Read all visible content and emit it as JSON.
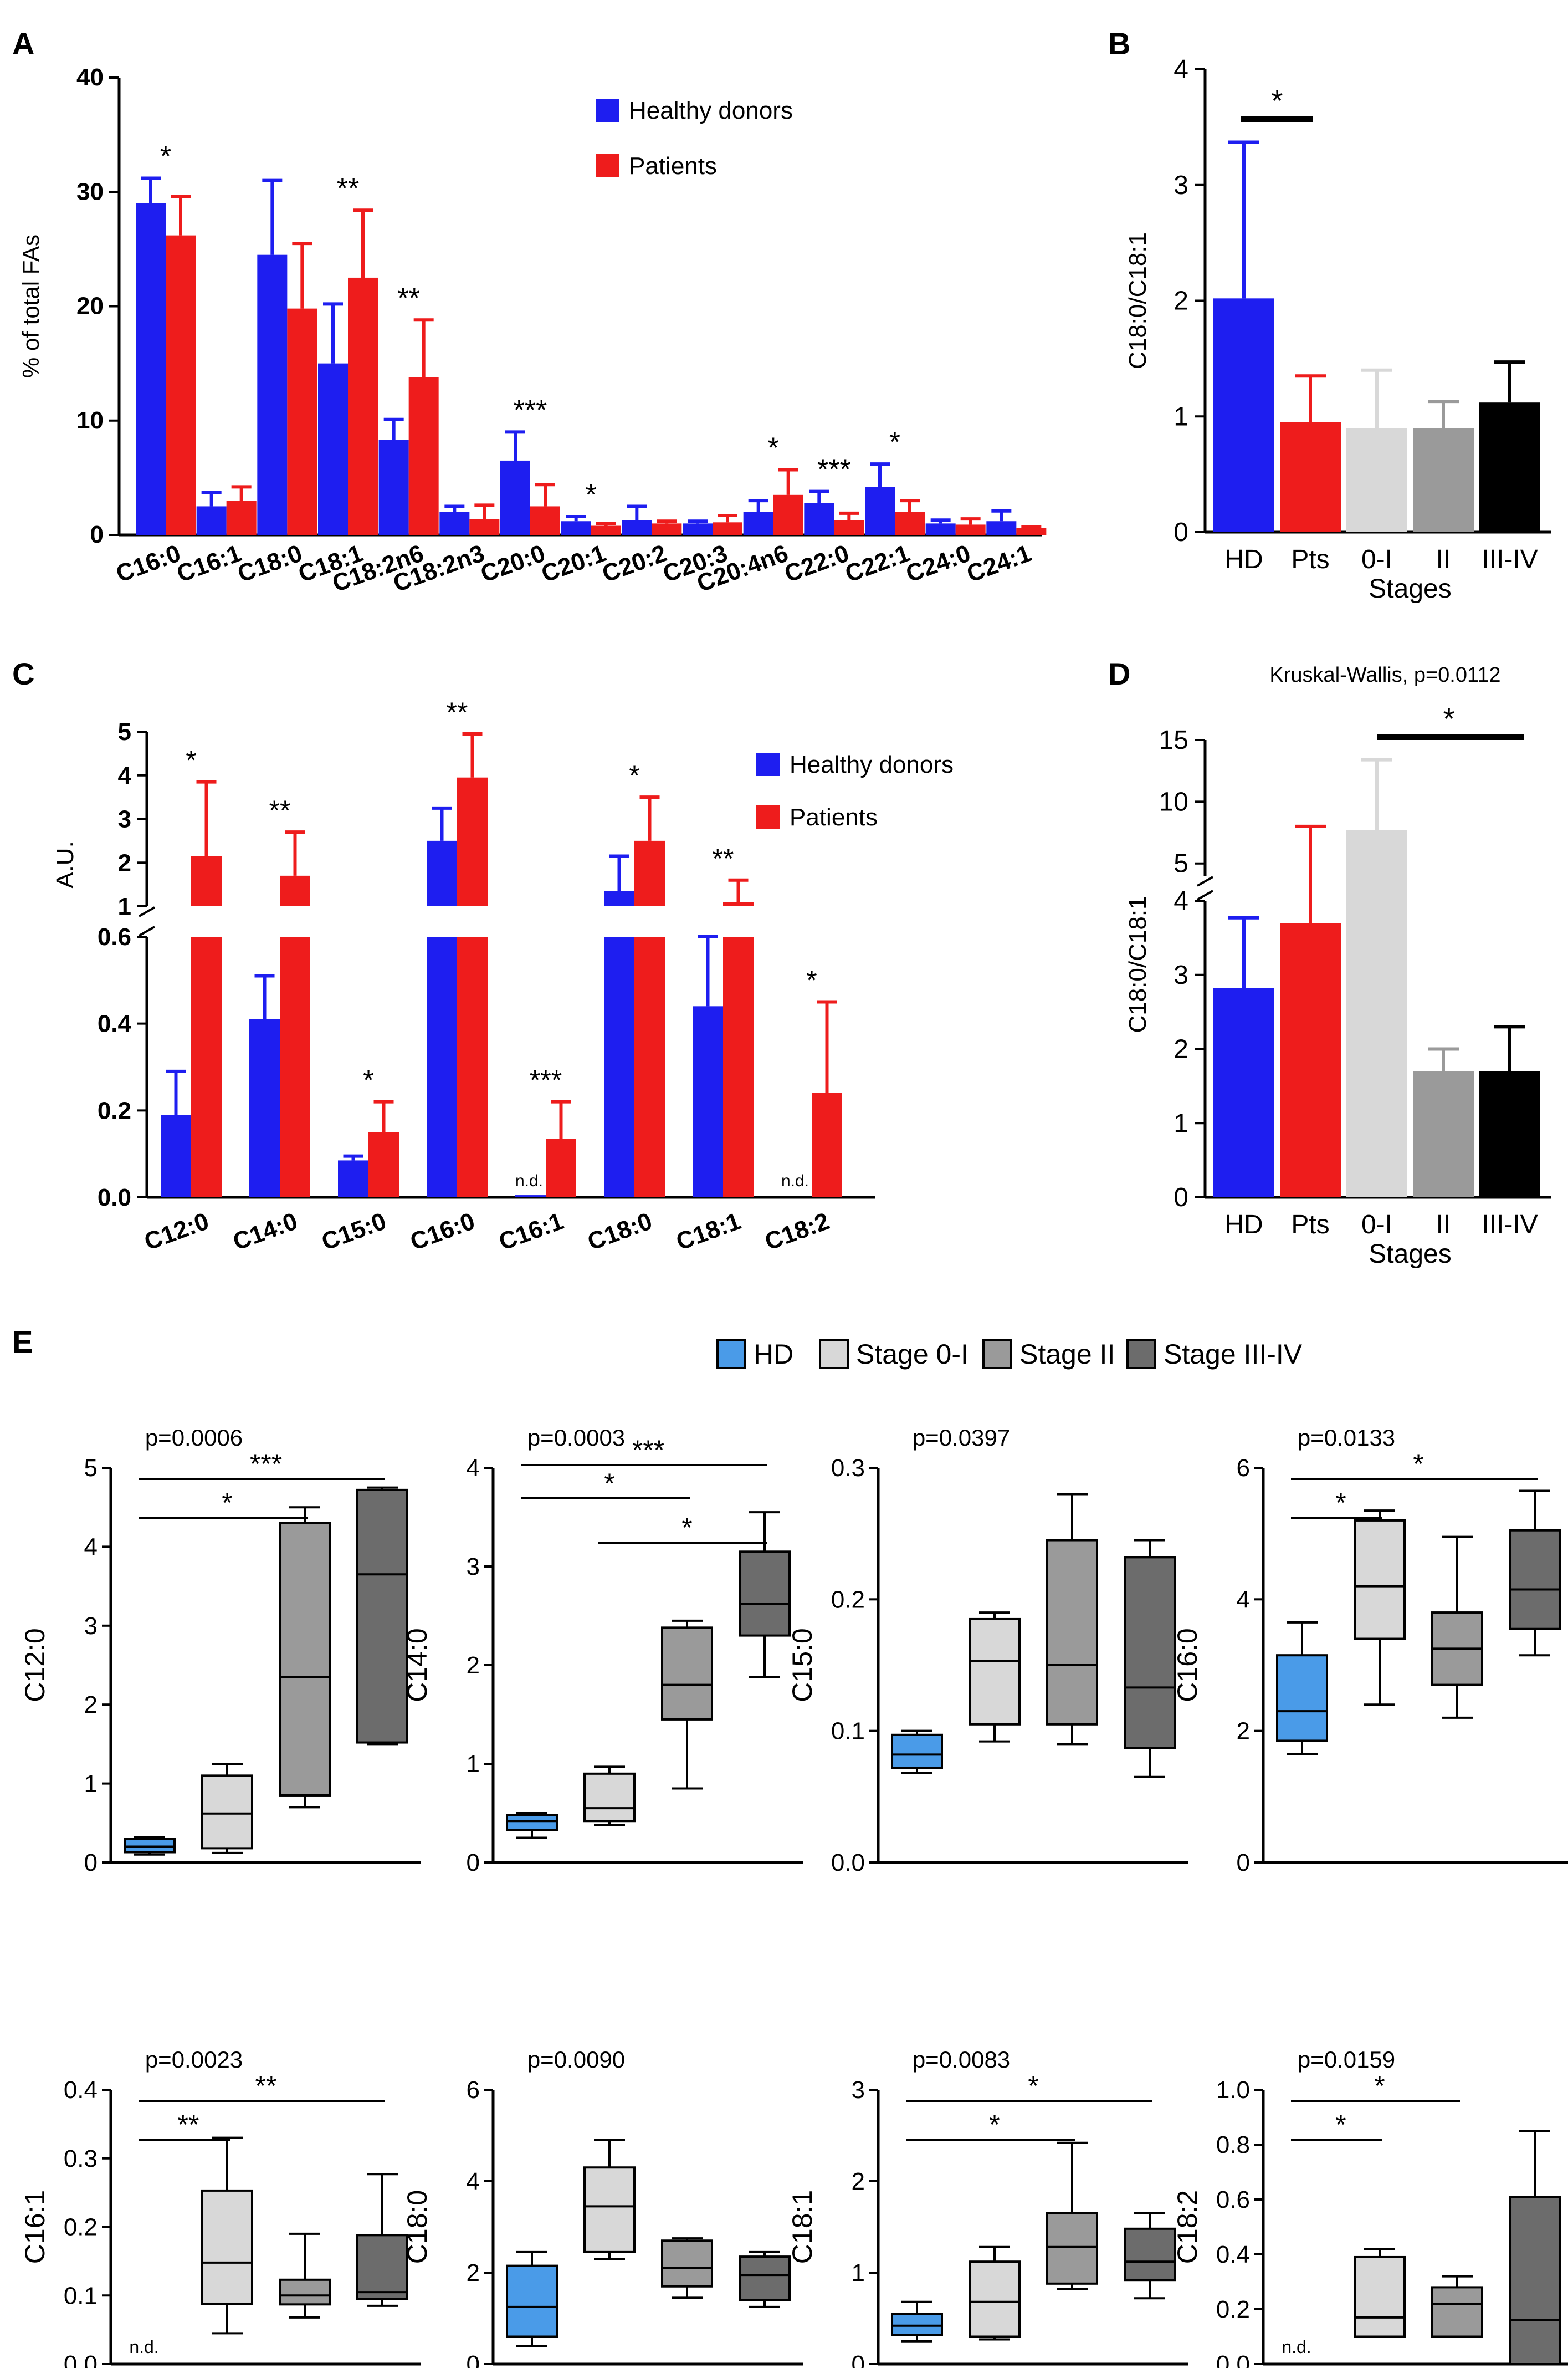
{
  "figure": {
    "colors": {
      "hd": "#1e1ef0",
      "pts": "#ee1c1c",
      "box_hd": "#4a9be8",
      "light": "#d8d8d8",
      "mid": "#9a9a9a",
      "dark": "#6c6c6c",
      "black": "#000000"
    }
  },
  "chart_data": [
    {
      "panel": "A",
      "type": "bar",
      "ylabel": "% of total FAs",
      "ylim": [
        0,
        40
      ],
      "yticks": [
        0,
        10,
        20,
        30,
        40
      ],
      "categories": [
        "C16:0",
        "C16:1",
        "C18:0",
        "C18:1",
        "C18:2n6",
        "C18:2n3",
        "C20:0",
        "C20:1",
        "C20:2",
        "C20:3",
        "C20:4n6",
        "C22:0",
        "C22:1",
        "C24:0",
        "C24:1"
      ],
      "legend": [
        "Healthy donors",
        "Patients"
      ],
      "series": [
        {
          "name": "Healthy donors",
          "values": [
            29,
            2.5,
            24.5,
            15,
            8.3,
            2,
            6.5,
            1.2,
            1.3,
            1,
            2,
            2.8,
            4.2,
            1,
            1.2
          ],
          "errors": [
            2.2,
            1.2,
            6.5,
            5.2,
            1.8,
            0.5,
            2.5,
            0.4,
            1.2,
            0.2,
            1,
            1,
            2,
            0.3,
            0.9
          ]
        },
        {
          "name": "Patients",
          "values": [
            26.2,
            3,
            19.8,
            22.5,
            13.8,
            1.4,
            2.5,
            0.8,
            1,
            1.1,
            3.5,
            1.3,
            2,
            0.9,
            0.6
          ],
          "errors": [
            3.4,
            1.2,
            5.7,
            5.9,
            5,
            1.2,
            1.9,
            0.2,
            0.2,
            0.6,
            2.2,
            0.6,
            1,
            0.5,
            0.1
          ]
        }
      ],
      "significance": [
        {
          "category": "C16:0",
          "label": "*"
        },
        {
          "category": "C18:1",
          "label": "**"
        },
        {
          "category": "C18:2n6",
          "label": "**"
        },
        {
          "category": "C20:0",
          "label": "***"
        },
        {
          "category": "C20:1",
          "label": "*"
        },
        {
          "category": "C20:4n6",
          "label": "*"
        },
        {
          "category": "C22:0",
          "label": "***"
        },
        {
          "category": "C22:1",
          "label": "*"
        }
      ]
    },
    {
      "panel": "B",
      "type": "bar",
      "ylabel": "C18:0/C18:1",
      "xlabel": "Stages",
      "ylim": [
        0,
        4
      ],
      "yticks": [
        0,
        1,
        2,
        3,
        4
      ],
      "categories": [
        "HD",
        "Pts",
        "0-I",
        "II",
        "III-IV"
      ],
      "values": [
        2.02,
        0.95,
        0.9,
        0.9,
        1.12
      ],
      "errors": [
        1.35,
        0.4,
        0.5,
        0.23,
        0.35
      ],
      "significance": [
        {
          "from": "HD",
          "to": "Pts",
          "label": "*"
        }
      ]
    },
    {
      "panel": "C",
      "type": "bar",
      "ylabel": "A.U.",
      "axis_break": true,
      "lower_range": [
        0,
        0.6
      ],
      "lower_ticks": [
        "0.0",
        "0.2",
        "0.4",
        "0.6"
      ],
      "upper_range": [
        1,
        5
      ],
      "upper_ticks": [
        "1",
        "2",
        "3",
        "4",
        "5"
      ],
      "categories": [
        "C12:0",
        "C14:0",
        "C15:0",
        "C16:0",
        "C16:1",
        "C18:0",
        "C18:1",
        "C18:2"
      ],
      "legend": [
        "Healthy donors",
        "Patients"
      ],
      "series": [
        {
          "name": "Healthy donors",
          "values": [
            0.19,
            0.41,
            0.085,
            2.5,
            0.005,
            1.35,
            0.44,
            0
          ],
          "errors": [
            0.1,
            0.1,
            0.01,
            0.75,
            0,
            0.8,
            0.16,
            0
          ]
        },
        {
          "name": "Patients",
          "values": [
            2.15,
            1.7,
            0.15,
            3.95,
            0.135,
            2.5,
            1.1,
            0.24
          ],
          "errors": [
            1.7,
            1,
            0.07,
            1,
            0.085,
            1,
            0.5,
            0.21
          ]
        }
      ],
      "not_detected_label": "n.d.",
      "not_detected": [
        "C16:1",
        "C18:2"
      ],
      "significance": [
        {
          "category": "C12:0",
          "label": "*"
        },
        {
          "category": "C14:0",
          "label": "**"
        },
        {
          "category": "C15:0",
          "label": "*"
        },
        {
          "category": "C16:0",
          "label": "**"
        },
        {
          "category": "C16:1",
          "label": "***"
        },
        {
          "category": "C18:0",
          "label": "*"
        },
        {
          "category": "C18:1",
          "label": "**"
        },
        {
          "category": "C18:2",
          "label": "*"
        }
      ]
    },
    {
      "panel": "D",
      "type": "bar",
      "title": "Kruskal-Wallis, p=0.0112",
      "ylabel": "C18:0/C18:1",
      "xlabel": "Stages",
      "axis_break": true,
      "lower_range": [
        0,
        4
      ],
      "lower_ticks": [
        "0",
        "1",
        "2",
        "3",
        "4"
      ],
      "upper_range": [
        4,
        15
      ],
      "upper_ticks": [
        "5",
        "10",
        "15"
      ],
      "categories": [
        "HD",
        "Pts",
        "0-I",
        "II",
        "III-IV"
      ],
      "values": [
        2.82,
        3.7,
        7.7,
        1.7,
        1.7
      ],
      "errors": [
        0.95,
        4.3,
        5.7,
        0.3,
        0.6
      ],
      "significance": [
        {
          "from": "0-I",
          "to": "III-IV",
          "label": "*"
        }
      ]
    },
    {
      "panel": "E",
      "type": "box",
      "legend": [
        "HD",
        "Stage 0-I",
        "Stage II",
        "Stage III-IV"
      ],
      "groups": [
        "HD",
        "Stage 0-I",
        "Stage II",
        "Stage III-IV"
      ],
      "not_detected_label": "n.d.",
      "plots": [
        {
          "ylabel": "C12:0",
          "p": "p=0.0006",
          "ylim": [
            0,
            5
          ],
          "yticks": [
            "0",
            "1",
            "2",
            "3",
            "4",
            "5"
          ],
          "boxes": [
            [
              0.1,
              0.13,
              0.2,
              0.3,
              0.32
            ],
            [
              0.12,
              0.18,
              0.62,
              1.1,
              1.25
            ],
            [
              0.7,
              0.85,
              2.35,
              4.3,
              4.5
            ],
            [
              1.5,
              1.52,
              3.65,
              4.72,
              4.75
            ]
          ],
          "comparisons": [
            {
              "from": 0,
              "to": 2,
              "label": "*"
            },
            {
              "from": 0,
              "to": 3,
              "label": "***"
            }
          ]
        },
        {
          "ylabel": "C14:0",
          "p": "p=0.0003",
          "ylim": [
            0,
            4
          ],
          "yticks": [
            "0",
            "1",
            "2",
            "3",
            "4"
          ],
          "boxes": [
            [
              0.25,
              0.33,
              0.42,
              0.48,
              0.5
            ],
            [
              0.38,
              0.42,
              0.55,
              0.9,
              0.97
            ],
            [
              0.75,
              1.45,
              1.8,
              2.38,
              2.45
            ],
            [
              1.88,
              2.3,
              2.62,
              3.15,
              3.55
            ]
          ],
          "comparisons": [
            {
              "from": 0,
              "to": 2,
              "label": "*"
            },
            {
              "from": 0,
              "to": 3,
              "label": "***"
            },
            {
              "from": 1,
              "to": 3,
              "label": "*"
            }
          ]
        },
        {
          "ylabel": "C15:0",
          "p": "p=0.0397",
          "ylim": [
            0,
            0.3
          ],
          "yticks": [
            "0.0",
            "0.1",
            "0.2",
            "0.3"
          ],
          "boxes": [
            [
              0.068,
              0.072,
              0.082,
              0.097,
              0.1
            ],
            [
              0.092,
              0.105,
              0.153,
              0.185,
              0.19
            ],
            [
              0.09,
              0.105,
              0.15,
              0.245,
              0.28
            ],
            [
              0.065,
              0.087,
              0.133,
              0.232,
              0.245
            ]
          ],
          "comparisons": []
        },
        {
          "ylabel": "C16:0",
          "p": "p=0.0133",
          "ylim": [
            0,
            6
          ],
          "yticks": [
            "0",
            "2",
            "4",
            "6"
          ],
          "boxes": [
            [
              1.65,
              1.85,
              2.3,
              3.15,
              3.65
            ],
            [
              2.4,
              3.4,
              4.2,
              5.2,
              5.35
            ],
            [
              2.2,
              2.7,
              3.25,
              3.8,
              4.95
            ],
            [
              3.15,
              3.55,
              4.15,
              5.05,
              5.65
            ]
          ],
          "comparisons": [
            {
              "from": 0,
              "to": 1,
              "label": "*"
            },
            {
              "from": 0,
              "to": 3,
              "label": "*"
            }
          ]
        },
        {
          "ylabel": "C16:1",
          "p": "p=0.0023",
          "ylim": [
            0,
            0.4
          ],
          "yticks": [
            "0.0",
            "0.1",
            "0.2",
            "0.3",
            "0.4"
          ],
          "boxes": [
            null,
            [
              0.045,
              0.088,
              0.148,
              0.253,
              0.33
            ],
            [
              0.068,
              0.087,
              0.1,
              0.123,
              0.19
            ],
            [
              0.085,
              0.095,
              0.105,
              0.188,
              0.277
            ]
          ],
          "comparisons": [
            {
              "from": 0,
              "to": 1,
              "label": "**"
            },
            {
              "from": 0,
              "to": 3,
              "label": "**"
            }
          ]
        },
        {
          "ylabel": "C18:0",
          "p": "p=0.0090",
          "ylim": [
            0,
            6
          ],
          "yticks": [
            "0",
            "2",
            "4",
            "6"
          ],
          "boxes": [
            [
              0.4,
              0.6,
              1.25,
              2.15,
              2.45
            ],
            [
              2.3,
              2.45,
              3.45,
              4.3,
              4.9
            ],
            [
              1.45,
              1.7,
              2.1,
              2.7,
              2.75
            ],
            [
              1.25,
              1.4,
              1.95,
              2.35,
              2.45
            ]
          ],
          "comparisons": []
        },
        {
          "ylabel": "C18:1",
          "p": "p=0.0083",
          "ylim": [
            0,
            3
          ],
          "yticks": [
            "0",
            "1",
            "2",
            "3"
          ],
          "boxes": [
            [
              0.25,
              0.32,
              0.42,
              0.55,
              0.68
            ],
            [
              0.27,
              0.3,
              0.68,
              1.12,
              1.28
            ],
            [
              0.82,
              0.88,
              1.28,
              1.65,
              2.42
            ],
            [
              0.72,
              0.92,
              1.12,
              1.48,
              1.65
            ]
          ],
          "comparisons": [
            {
              "from": 0,
              "to": 2,
              "label": "*"
            },
            {
              "from": 0,
              "to": 3,
              "label": "*"
            }
          ]
        },
        {
          "ylabel": "C18:2",
          "p": "p=0.0159",
          "ylim": [
            0,
            1
          ],
          "yticks": [
            "0.0",
            "0.2",
            "0.4",
            "0.6",
            "0.8",
            "1.0"
          ],
          "boxes": [
            null,
            [
              0.1,
              0.1,
              0.17,
              0.39,
              0.42
            ],
            [
              0.1,
              0.1,
              0.22,
              0.28,
              0.32
            ],
            [
              0,
              0,
              0.16,
              0.61,
              0.85
            ]
          ],
          "comparisons": [
            {
              "from": 0,
              "to": 1,
              "label": "*"
            },
            {
              "from": 0,
              "to": 2,
              "label": "*"
            }
          ]
        }
      ]
    }
  ]
}
